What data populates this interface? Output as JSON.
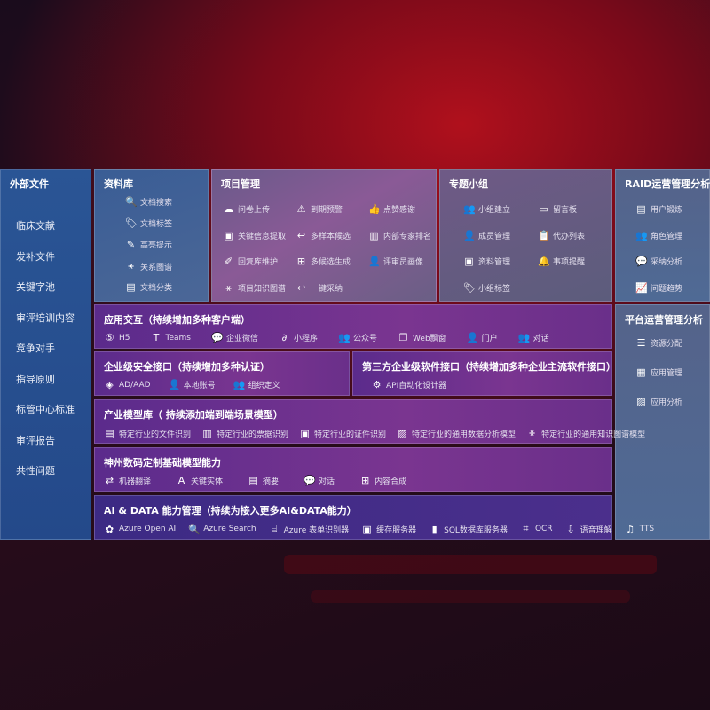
{
  "sidebar": {
    "title": "外部文件",
    "items": [
      "临床文献",
      "发补文件",
      "关键字池",
      "审评培训内容",
      "竞争对手",
      "指导原则",
      "标管中心标准",
      "审评报告",
      "共性问题"
    ]
  },
  "library": {
    "title": "资料库",
    "items": [
      {
        "icon": "doc-search",
        "glyph": "🔍",
        "label": "文档搜索"
      },
      {
        "icon": "tag",
        "glyph": "🏷",
        "label": "文档标签"
      },
      {
        "icon": "highlight",
        "glyph": "✎",
        "label": "高亮提示"
      },
      {
        "icon": "graph",
        "glyph": "⚹",
        "label": "关系图谱"
      },
      {
        "icon": "doc-classify",
        "glyph": "▤",
        "label": "文档分类"
      }
    ]
  },
  "project": {
    "title": "项目管理",
    "items": [
      {
        "icon": "cloud-upload",
        "glyph": "☁",
        "label": "问卷上传"
      },
      {
        "icon": "alarm",
        "glyph": "⚠",
        "label": "到期预警"
      },
      {
        "icon": "thumbs-up",
        "glyph": "👍",
        "label": "点赞感谢"
      },
      {
        "icon": "info-extract",
        "glyph": "▣",
        "label": "关键信息提取"
      },
      {
        "icon": "reply",
        "glyph": "↩",
        "label": "多样本候选"
      },
      {
        "icon": "ranking",
        "glyph": "▥",
        "label": "内部专家排名"
      },
      {
        "icon": "pen",
        "glyph": "✐",
        "label": "回复库维护"
      },
      {
        "icon": "puzzle",
        "glyph": "⊞",
        "label": "多候选生成"
      },
      {
        "icon": "person",
        "glyph": "👤",
        "label": "评审员画像"
      },
      {
        "icon": "knowledge-graph",
        "glyph": "⚹",
        "label": "项目知识图谱"
      },
      {
        "icon": "reply",
        "glyph": "↩",
        "label": "一键采纳"
      }
    ]
  },
  "group": {
    "title": "专题小组",
    "items": [
      {
        "icon": "users",
        "glyph": "👥",
        "label": "小组建立"
      },
      {
        "icon": "bbs",
        "glyph": "▭",
        "label": "留言板"
      },
      {
        "icon": "user-add",
        "glyph": "👤",
        "label": "成员管理"
      },
      {
        "icon": "clipboard",
        "glyph": "📋",
        "label": "代办列表"
      },
      {
        "icon": "folder",
        "glyph": "▣",
        "label": "资料管理"
      },
      {
        "icon": "bell",
        "glyph": "🔔",
        "label": "事项提醒"
      },
      {
        "icon": "tag",
        "glyph": "🏷",
        "label": "小组标签"
      }
    ]
  },
  "raid": {
    "title": "RAID运营管理分析",
    "items": [
      {
        "icon": "id-card",
        "glyph": "▤",
        "label": "用户锻炼"
      },
      {
        "icon": "users",
        "glyph": "👥",
        "label": "角色管理"
      },
      {
        "icon": "qa",
        "glyph": "💬",
        "label": "采纳分析"
      },
      {
        "icon": "trend",
        "glyph": "📈",
        "label": "问题趋势"
      }
    ]
  },
  "platform": {
    "title": "平台运营管理分析",
    "items": [
      {
        "icon": "list",
        "glyph": "☰",
        "label": "资源分配"
      },
      {
        "icon": "apps",
        "glyph": "▦",
        "label": "应用管理"
      },
      {
        "icon": "chart",
        "glyph": "▨",
        "label": "应用分析"
      }
    ]
  },
  "interaction": {
    "title": "应用交互（持续增加多种客户端）",
    "items": [
      {
        "icon": "html5",
        "glyph": "⑤",
        "label": "H5"
      },
      {
        "icon": "teams",
        "glyph": "T",
        "label": "Teams"
      },
      {
        "icon": "wechat-work",
        "glyph": "💬",
        "label": "企业微信"
      },
      {
        "icon": "mini-program",
        "glyph": "∂",
        "label": "小程序"
      },
      {
        "icon": "official-account",
        "glyph": "👥",
        "label": "公众号"
      },
      {
        "icon": "window",
        "glyph": "❐",
        "label": "Web飘窗"
      },
      {
        "icon": "portal",
        "glyph": "👤",
        "label": "门户"
      },
      {
        "icon": "chat",
        "glyph": "👥",
        "label": "对话"
      }
    ]
  },
  "security": {
    "title": "企业级安全接口（持续增加多种认证）",
    "items": [
      {
        "icon": "ad",
        "glyph": "◈",
        "label": "AD/AAD"
      },
      {
        "icon": "local-account",
        "glyph": "👤",
        "label": "本地账号"
      },
      {
        "icon": "org",
        "glyph": "👥",
        "label": "组织定义"
      }
    ]
  },
  "thirdparty": {
    "title": "第三方企业级软件接口（持续增加多种企业主流软件接口）",
    "items": [
      {
        "icon": "gear",
        "glyph": "⚙",
        "label": "API自动化设计器"
      }
    ]
  },
  "industry": {
    "title": "产业模型库（ 持续添加端到端场景模型）",
    "items": [
      {
        "icon": "file",
        "glyph": "▤",
        "label": "特定行业的文件识别"
      },
      {
        "icon": "receipt",
        "glyph": "▥",
        "label": "特定行业的票据识别"
      },
      {
        "icon": "id-card",
        "glyph": "▣",
        "label": "特定行业的证件识别"
      },
      {
        "icon": "data-analysis",
        "glyph": "▨",
        "label": "特定行业的通用数据分析模型"
      },
      {
        "icon": "knowledge-graph",
        "glyph": "⚹",
        "label": "特定行业的通用知识图谱模型"
      }
    ]
  },
  "base": {
    "title": "神州数码定制基础模型能力",
    "items": [
      {
        "icon": "translate",
        "glyph": "⇄",
        "label": "机器翻译"
      },
      {
        "icon": "entity",
        "glyph": "A",
        "label": "关键实体"
      },
      {
        "icon": "summary",
        "glyph": "▤",
        "label": "摘要"
      },
      {
        "icon": "chat",
        "glyph": "💬",
        "label": "对话"
      },
      {
        "icon": "compose",
        "glyph": "⊞",
        "label": "内容合成"
      }
    ]
  },
  "ai": {
    "title": "AI & DATA 能力管理（持续为接入更多AI&DATA能力）",
    "items": [
      {
        "icon": "openai",
        "glyph": "✿",
        "label": "Azure Open AI"
      },
      {
        "icon": "search",
        "glyph": "🔍",
        "label": "Azure Search"
      },
      {
        "icon": "form",
        "glyph": "⌸",
        "label": "Azure 表单识别器"
      },
      {
        "icon": "cache",
        "glyph": "▣",
        "label": "缓存服务器"
      },
      {
        "icon": "sql",
        "glyph": "▮",
        "label": "SQL数据库服务器"
      },
      {
        "icon": "ocr",
        "glyph": "⌗",
        "label": "OCR"
      },
      {
        "icon": "speech",
        "glyph": "⇩",
        "label": "语音理解"
      },
      {
        "icon": "tts",
        "glyph": "♫",
        "label": "TTS"
      }
    ]
  }
}
